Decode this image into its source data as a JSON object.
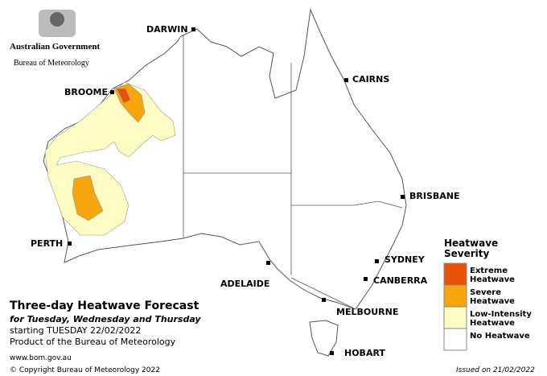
{
  "header": {
    "government": "Australian Government",
    "agency": "Bureau of Meteorology"
  },
  "cities": [
    "DARWIN",
    "CAIRNS",
    "BROOME",
    "BRISBANE",
    "PERTH",
    "SYDNEY",
    "CANBERRA",
    "ADELAIDE",
    "MELBOURNE",
    "HOBART"
  ],
  "title": {
    "main": "Three-day Heatwave Forecast",
    "subtitle": "for Tuesday, Wednesday and Thursday",
    "starting": "starting TUESDAY 22/02/2022",
    "product": "Product of the Bureau of Meteorology",
    "website": "www.bom.gov.au"
  },
  "legend": {
    "title": "Heatwave Severity",
    "items": [
      {
        "label": "Extreme Heatwave",
        "color": "#e8510a"
      },
      {
        "label": "Severe Heatwave",
        "color": "#f7a50c"
      },
      {
        "label": "Low-Intensity Heatwave",
        "color": "#fdfcc3"
      },
      {
        "label": "No Heatwave",
        "color": "#ffffff"
      }
    ]
  },
  "footer": {
    "copyright": "© Copyright Bureau of Meteorology 2022",
    "issued": "Issued on 21/02/2022"
  }
}
